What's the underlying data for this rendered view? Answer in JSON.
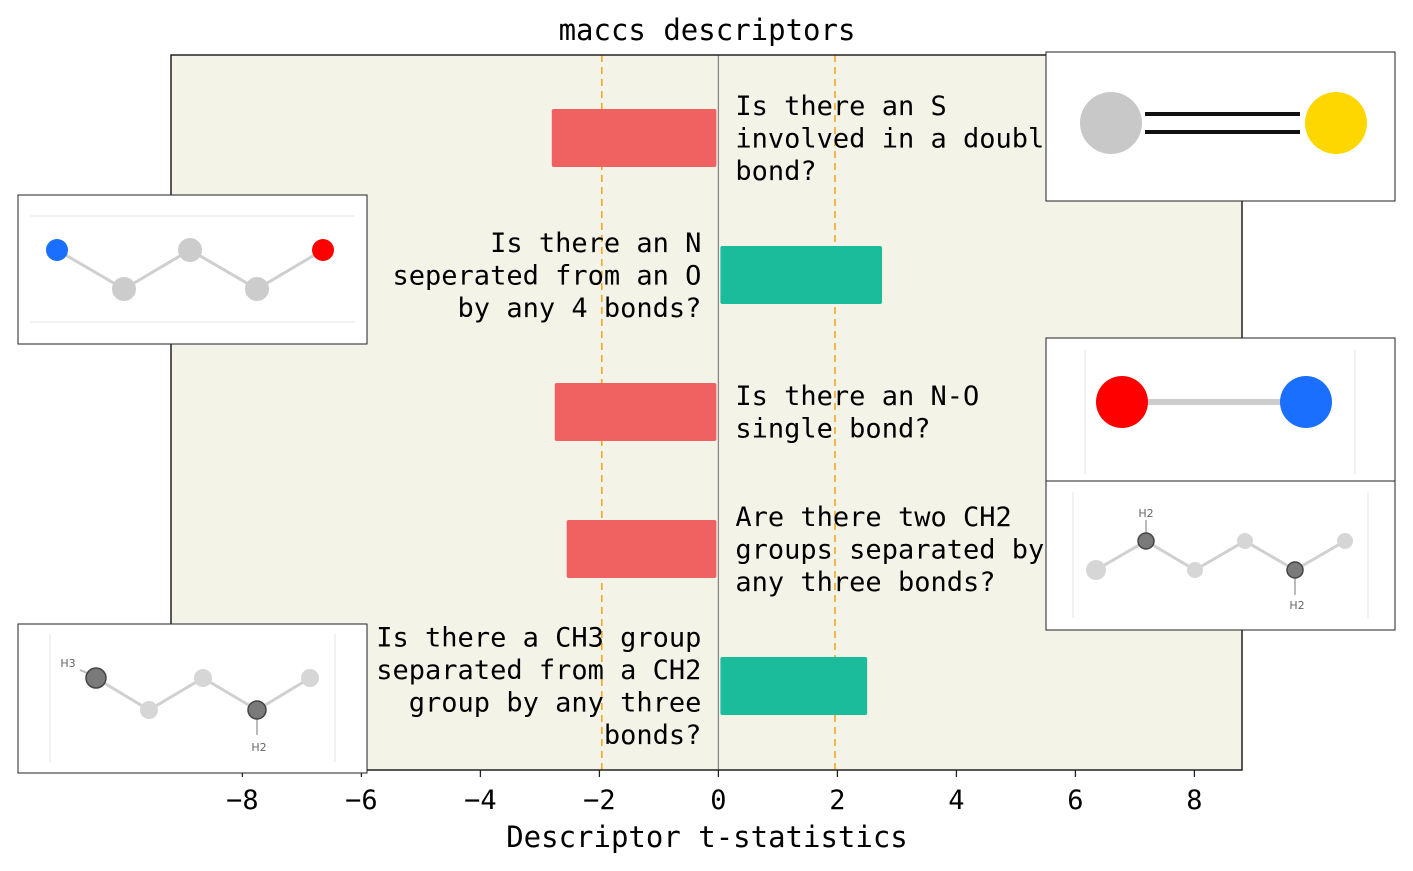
{
  "chart_data": {
    "type": "bar",
    "orientation": "horizontal",
    "title": "maccs descriptors",
    "xlabel": "Descriptor t-statistics",
    "ylabel": "",
    "xlim": [
      -9.2,
      8.8
    ],
    "xticks": [
      -8,
      -6,
      -4,
      -2,
      0,
      2,
      4,
      6,
      8
    ],
    "xtick_labels": [
      "−8",
      "−6",
      "−4",
      "−2",
      "0",
      "2",
      "4",
      "6",
      "8"
    ],
    "reference_lines": [
      -1.96,
      0,
      1.96
    ],
    "grid": false,
    "colors": {
      "negative": "#f06262",
      "positive": "#1abc9c",
      "threshold_line": "#f5a623",
      "zero_line": "#888888",
      "plot_background": "#f3f3e8"
    },
    "bars": [
      {
        "value": -2.8,
        "label_lines": [
          "Is there an S",
          "involved in a double",
          "bond?"
        ]
      },
      {
        "value": 2.75,
        "label_lines": [
          "Is there an N",
          "seperated from an O",
          "by any 4 bonds?"
        ]
      },
      {
        "value": -2.75,
        "label_lines": [
          "Is there an N-O",
          "single bond?"
        ]
      },
      {
        "value": -2.55,
        "label_lines": [
          "Are there two CH2",
          "groups separated by",
          "any three bonds?"
        ]
      },
      {
        "value": 2.5,
        "label_lines": [
          "Is there a CH3 group",
          "separated from a CH2",
          "group by any three",
          "bonds?"
        ]
      }
    ],
    "molecule_insets": [
      {
        "bar_index": 0,
        "side": "right",
        "depicts": "S double bond",
        "atom_labels": []
      },
      {
        "bar_index": 1,
        "side": "left",
        "depicts": "N separated from O by 4 bonds",
        "atom_labels": []
      },
      {
        "bar_index": 2,
        "side": "right",
        "depicts": "N-O single bond",
        "atom_labels": []
      },
      {
        "bar_index": 3,
        "side": "right",
        "depicts": "two CH2 groups separated by three bonds",
        "atom_labels": [
          "H2",
          "H2"
        ]
      },
      {
        "bar_index": 4,
        "side": "left",
        "depicts": "CH3 separated from CH2 by three bonds",
        "atom_labels": [
          "H3",
          "H2"
        ]
      }
    ]
  }
}
